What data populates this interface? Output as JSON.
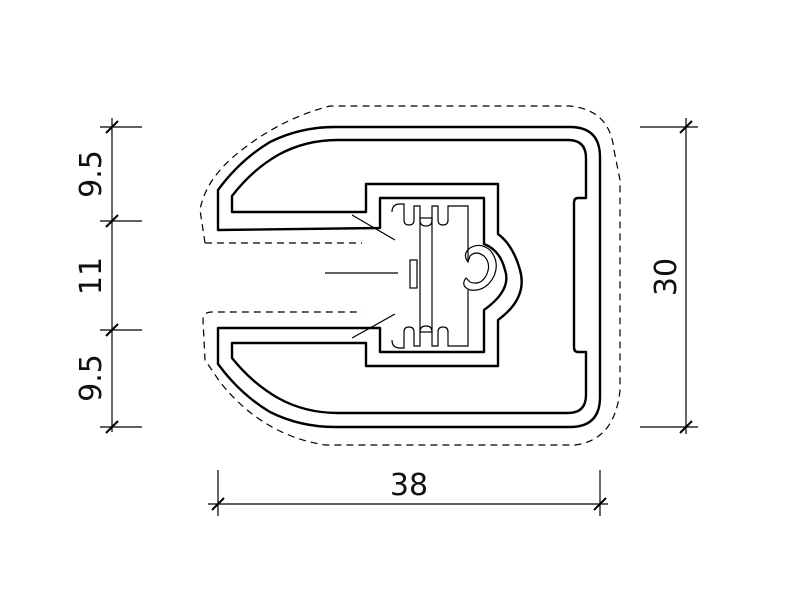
{
  "dimensions": {
    "left_top": "9.5",
    "left_middle": "11",
    "left_bottom": "9.5",
    "right_height": "30",
    "bottom_width": "38"
  },
  "colors": {
    "line": "#000000",
    "background": "#ffffff"
  }
}
